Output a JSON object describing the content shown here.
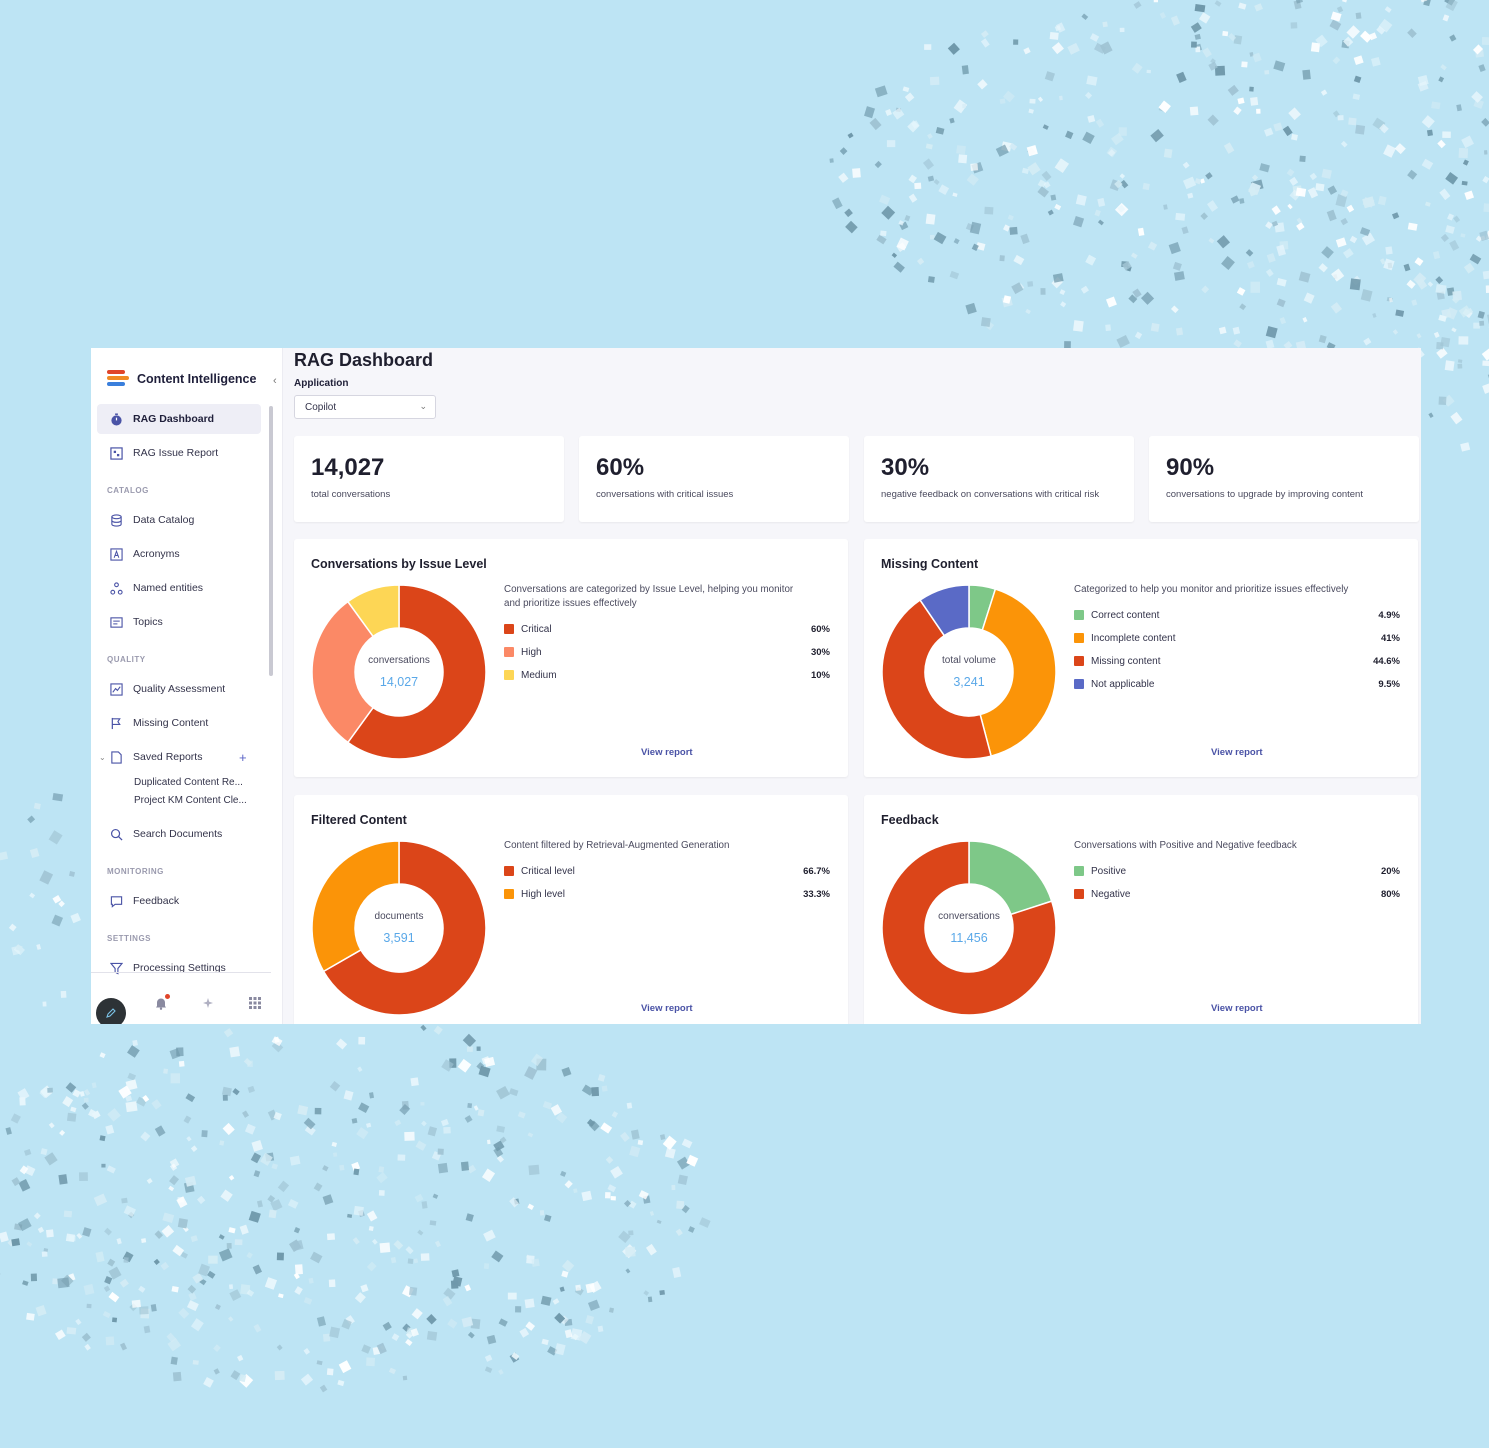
{
  "colors": {
    "background": "#bde4f4",
    "accent": "#4a53a6",
    "critical": "#db4519",
    "high": "#fb8966",
    "medium": "#fdd655",
    "green": "#7ec888",
    "orange": "#fb9408",
    "blue": "#5a6ac6",
    "center_value": "#5aa8e8"
  },
  "sidebar": {
    "brand": "Content Intelligence",
    "items": [
      {
        "label": "RAG Dashboard",
        "icon": "timer-icon"
      },
      {
        "label": "RAG Issue Report",
        "icon": "report-icon"
      }
    ],
    "sections": {
      "catalog": "CATALOG",
      "quality": "QUALITY",
      "monitoring": "MONITORING",
      "settings": "SETTINGS"
    },
    "catalog_items": [
      {
        "label": "Data Catalog",
        "icon": "database-icon"
      },
      {
        "label": "Acronyms",
        "icon": "acronym-icon"
      },
      {
        "label": "Named entities",
        "icon": "entities-icon"
      },
      {
        "label": "Topics",
        "icon": "topics-icon"
      }
    ],
    "quality_items": [
      {
        "label": "Quality Assessment",
        "icon": "chart-icon"
      },
      {
        "label": "Missing Content",
        "icon": "flag-icon"
      },
      {
        "label": "Saved Reports",
        "icon": "document-icon"
      }
    ],
    "saved_reports": [
      "Duplicated Content Re...",
      "Project KM Content Cle..."
    ],
    "search_documents": "Search Documents",
    "monitoring_items": [
      {
        "label": "Feedback",
        "icon": "comment-icon"
      }
    ],
    "settings_items": [
      {
        "label": "Processing Settings",
        "icon": "filter-icon"
      }
    ]
  },
  "main": {
    "title": "RAG Dashboard",
    "application_label": "Application",
    "application_value": "Copilot"
  },
  "kpis": [
    {
      "value": "14,027",
      "label": "total conversations"
    },
    {
      "value": "60%",
      "label": "conversations with critical issues"
    },
    {
      "value": "30%",
      "label": "negative feedback on conversations with critical risk"
    },
    {
      "value": "90%",
      "label": "conversations to upgrade by improving content"
    }
  ],
  "view_report": "View report",
  "chart_data": [
    {
      "type": "pie",
      "title": "Conversations by Issue Level",
      "description": "Conversations are categorized by Issue Level, helping you monitor and prioritize issues effectively",
      "center_label": "conversations",
      "center_value": "14,027",
      "slices": [
        {
          "name": "Critical",
          "value": 60,
          "label": "60%",
          "color": "#db4519"
        },
        {
          "name": "High",
          "value": 30,
          "label": "30%",
          "color": "#fb8966"
        },
        {
          "name": "Medium",
          "value": 10,
          "label": "10%",
          "color": "#fdd655"
        }
      ]
    },
    {
      "type": "pie",
      "title": "Missing Content",
      "description": "Categorized to help you monitor and prioritize issues effectively",
      "center_label": "total volume",
      "center_value": "3,241",
      "slices": [
        {
          "name": "Correct content",
          "value": 4.9,
          "label": "4.9%",
          "color": "#7ec888"
        },
        {
          "name": "Incomplete content",
          "value": 41,
          "label": "41%",
          "color": "#fb9408"
        },
        {
          "name": "Missing content",
          "value": 44.6,
          "label": "44.6%",
          "color": "#db4519"
        },
        {
          "name": "Not applicable",
          "value": 9.5,
          "label": "9.5%",
          "color": "#5a6ac6"
        }
      ]
    },
    {
      "type": "pie",
      "title": "Filtered Content",
      "description": "Content filtered by Retrieval-Augmented Generation",
      "center_label": "documents",
      "center_value": "3,591",
      "slices": [
        {
          "name": "Critical level",
          "value": 66.7,
          "label": "66.7%",
          "color": "#db4519"
        },
        {
          "name": "High level",
          "value": 33.3,
          "label": "33.3%",
          "color": "#fb9408"
        }
      ]
    },
    {
      "type": "pie",
      "title": "Feedback",
      "description": "Conversations with Positive and Negative feedback",
      "center_label": "conversations",
      "center_value": "11,456",
      "slices": [
        {
          "name": "Positive",
          "value": 20,
          "label": "20%",
          "color": "#7ec888"
        },
        {
          "name": "Negative",
          "value": 80,
          "label": "80%",
          "color": "#db4519"
        }
      ]
    }
  ]
}
